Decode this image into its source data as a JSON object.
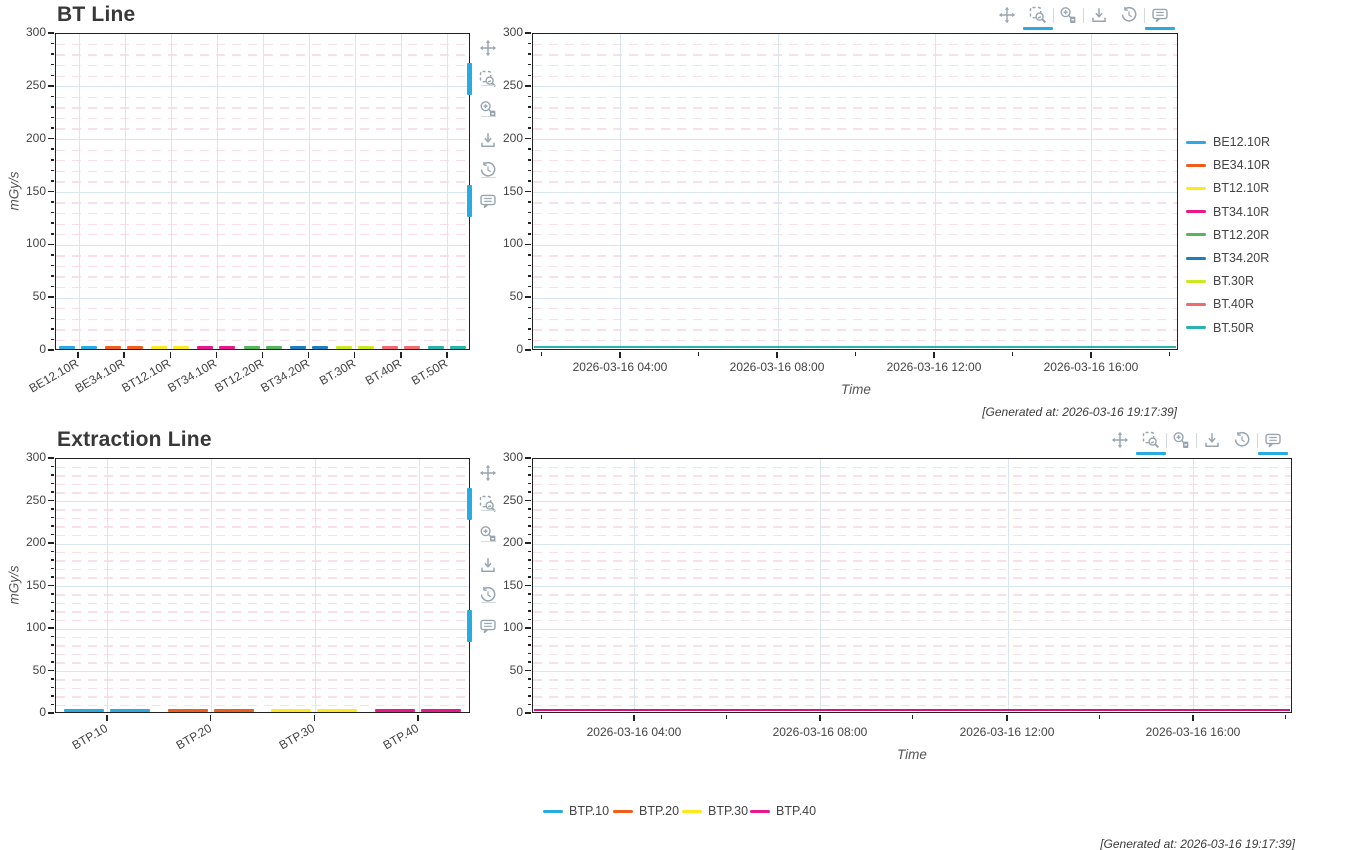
{
  "accent_color": "#29abe2",
  "grid_colors": {
    "major": "#d9e6f1",
    "minor": "#fbdfe7",
    "axis": "#222222"
  },
  "modebar": {
    "icon_color": "#98a5b0",
    "tools": [
      {
        "name": "pan",
        "active": false
      },
      {
        "name": "zoom-box",
        "active": true
      },
      {
        "name": "zoom-in-out",
        "active": false
      },
      {
        "name": "download",
        "active": false
      },
      {
        "name": "reset",
        "active": false
      },
      {
        "name": "hover",
        "active": true
      }
    ]
  },
  "sections": [
    {
      "title": "BT Line",
      "generated_at": "[Generated at: 2026-03-16 19:17:39]",
      "y_axis_label": "mGy/s",
      "x_axis_label": "Time",
      "y_ticks": [
        "0",
        "50",
        "100",
        "150",
        "200",
        "250",
        "300"
      ],
      "time_ticks": [
        "2026-03-16 04:00",
        "2026-03-16 08:00",
        "2026-03-16 12:00",
        "2026-03-16 16:00"
      ],
      "legend_position": "right",
      "timeseries_visible_color": "#28b3ae",
      "series": [
        {
          "name": "BE12.10R",
          "color": "#29abe2"
        },
        {
          "name": "BE34.10R",
          "color": "#f25c19"
        },
        {
          "name": "BT12.10R",
          "color": "#ffe81e"
        },
        {
          "name": "BT34.10R",
          "color": "#e8178a"
        },
        {
          "name": "BT12.20R",
          "color": "#58b55c"
        },
        {
          "name": "BT34.20R",
          "color": "#1d7dbf"
        },
        {
          "name": "BT.30R",
          "color": "#cde81e"
        },
        {
          "name": "BT.40R",
          "color": "#f26a6e"
        },
        {
          "name": "BT.50R",
          "color": "#28b3ae"
        }
      ]
    },
    {
      "title": "Extraction Line",
      "generated_at": "[Generated at: 2026-03-16 19:17:39]",
      "y_axis_label": "mGy/s",
      "x_axis_label": "Time",
      "y_ticks": [
        "0",
        "50",
        "100",
        "150",
        "200",
        "250",
        "300"
      ],
      "time_ticks": [
        "2026-03-16 04:00",
        "2026-03-16 08:00",
        "2026-03-16 12:00",
        "2026-03-16 16:00"
      ],
      "legend_position": "bottom",
      "timeseries_visible_color": "#d5127f",
      "series": [
        {
          "name": "BTP.10",
          "color": "#29abe2"
        },
        {
          "name": "BTP.20",
          "color": "#f25c19"
        },
        {
          "name": "BTP.30",
          "color": "#ffe81e"
        },
        {
          "name": "BTP.40",
          "color": "#e8178a"
        }
      ]
    }
  ],
  "chart_data": [
    {
      "type": "bar",
      "subtype": "flat-box-marks-at-zero",
      "title": "BT Line",
      "xlabel": "",
      "ylabel": "mGy/s",
      "ylim": [
        0,
        300
      ],
      "yticks": [
        0,
        50,
        100,
        150,
        200,
        250,
        300
      ],
      "minor_grid_step": 10,
      "grid": true,
      "categories": [
        "BE12.10R",
        "BE34.10R",
        "BT12.10R",
        "BT34.10R",
        "BT12.20R",
        "BT34.20R",
        "BT.30R",
        "BT.40R",
        "BT.50R"
      ],
      "values": [
        0,
        0,
        0,
        0,
        0,
        0,
        0,
        0,
        0
      ]
    },
    {
      "type": "line",
      "title": "BT Line (time series)",
      "xlabel": "Time",
      "ylabel": "mGy/s",
      "ylim": [
        0,
        300
      ],
      "yticks": [
        0,
        50,
        100,
        150,
        200,
        250,
        300
      ],
      "xticks": [
        "2026-03-16 04:00",
        "2026-03-16 08:00",
        "2026-03-16 12:00",
        "2026-03-16 16:00"
      ],
      "legend_position": "right",
      "series": [
        {
          "name": "BE12.10R",
          "values": [
            0,
            0,
            0,
            0
          ]
        },
        {
          "name": "BE34.10R",
          "values": [
            0,
            0,
            0,
            0
          ]
        },
        {
          "name": "BT12.10R",
          "values": [
            0,
            0,
            0,
            0
          ]
        },
        {
          "name": "BT34.10R",
          "values": [
            0,
            0,
            0,
            0
          ]
        },
        {
          "name": "BT12.20R",
          "values": [
            0,
            0,
            0,
            0
          ]
        },
        {
          "name": "BT34.20R",
          "values": [
            0,
            0,
            0,
            0
          ]
        },
        {
          "name": "BT.30R",
          "values": [
            0,
            0,
            0,
            0
          ]
        },
        {
          "name": "BT.40R",
          "values": [
            0,
            0,
            0,
            0
          ]
        },
        {
          "name": "BT.50R",
          "values": [
            0,
            0,
            0,
            0
          ]
        }
      ]
    },
    {
      "type": "bar",
      "subtype": "flat-box-marks-at-zero",
      "title": "Extraction Line",
      "xlabel": "",
      "ylabel": "mGy/s",
      "ylim": [
        0,
        300
      ],
      "yticks": [
        0,
        50,
        100,
        150,
        200,
        250,
        300
      ],
      "minor_grid_step": 10,
      "grid": true,
      "categories": [
        "BTP.10",
        "BTP.20",
        "BTP.30",
        "BTP.40"
      ],
      "values": [
        0,
        0,
        0,
        0
      ]
    },
    {
      "type": "line",
      "title": "Extraction Line (time series)",
      "xlabel": "Time",
      "ylabel": "mGy/s",
      "ylim": [
        0,
        300
      ],
      "yticks": [
        0,
        50,
        100,
        150,
        200,
        250,
        300
      ],
      "xticks": [
        "2026-03-16 04:00",
        "2026-03-16 08:00",
        "2026-03-16 12:00",
        "2026-03-16 16:00"
      ],
      "legend_position": "bottom",
      "series": [
        {
          "name": "BTP.10",
          "values": [
            0,
            0,
            0,
            0
          ]
        },
        {
          "name": "BTP.20",
          "values": [
            0,
            0,
            0,
            0
          ]
        },
        {
          "name": "BTP.30",
          "values": [
            0,
            0,
            0,
            0
          ]
        },
        {
          "name": "BTP.40",
          "values": [
            0,
            0,
            0,
            0
          ]
        }
      ]
    }
  ]
}
